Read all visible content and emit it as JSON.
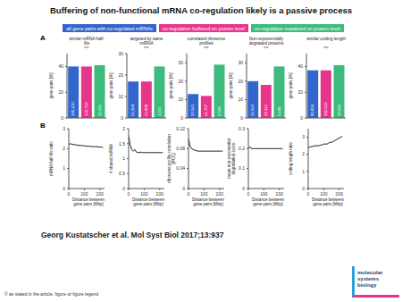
{
  "title": "Buffering of non-functional mRNA co-regulation likely is a passive process",
  "panels": [
    "A",
    "B"
  ],
  "chart_data": [
    {
      "type": "bar",
      "title": "similar mRNA half-life",
      "categories": [
        "all gene pairs with co-regulated mRNAs",
        "co-regulation buffered on protein level",
        "co-regulation sustained on protein level"
      ],
      "colors": [
        "#3366cc",
        "#e8358c",
        "#3dbb7d"
      ],
      "values": [
        40,
        40,
        41
      ],
      "counts": [
        105120,
        146713,
        11416
      ],
      "ylabel": "gene pairs [%]",
      "ylim": [
        0,
        50
      ],
      "yticks": [
        0,
        20,
        40
      ],
      "annotation": "***",
      "tick_labels": "y",
      "legend": "top"
    },
    {
      "type": "bar",
      "title": "targeted by same miRNA",
      "categories": [
        "all gene pairs with co-regulated mRNAs",
        "co-regulation buffered on protein level",
        "co-regulation sustained on protein level"
      ],
      "colors": [
        "#3366cc",
        "#e8358c",
        "#3dbb7d"
      ],
      "values": [
        17,
        17,
        24
      ],
      "counts": [
        62369,
        44908,
        1374
      ],
      "ylabel": "gene pairs [%]",
      "ylim": [
        0,
        30
      ],
      "yticks": [
        0,
        10,
        20,
        30
      ],
      "annotation": "***",
      "tick_labels": "y"
    },
    {
      "type": "bar",
      "title": "correlated ribosome profiles",
      "categories": [
        "all gene pairs with co-regulated mRNAs",
        "co-regulation buffered on protein level",
        "co-regulation sustained on protein level"
      ],
      "colors": [
        "#3366cc",
        "#e8358c",
        "#3dbb7d"
      ],
      "values": [
        13,
        12,
        29
      ],
      "counts": [
        55545,
        41707,
        6508
      ],
      "ylabel": "gene pairs [%]",
      "ylim": [
        0,
        35
      ],
      "yticks": [
        0,
        10,
        20,
        30
      ],
      "annotation": "***",
      "tick_labels": "y"
    },
    {
      "type": "bar",
      "title": "Non-exponentially degraded proteins",
      "categories": [
        "all gene pairs with co-regulated mRNAs",
        "co-regulation buffered on protein level",
        "co-regulation sustained on protein level"
      ],
      "colors": [
        "#3366cc",
        "#e8358c",
        "#3dbb7d"
      ],
      "values": [
        20,
        18,
        28
      ],
      "counts": [
        32640,
        28142,
        3198
      ],
      "ylabel": "gene pairs [%]",
      "ylim": [
        0,
        35
      ],
      "yticks": [
        0,
        10,
        20,
        30
      ],
      "annotation": "***",
      "tick_labels": "y"
    },
    {
      "type": "bar",
      "title": "similar coding length",
      "categories": [
        "all gene pairs with co-regulated mRNAs",
        "co-regulation buffered on protein level",
        "co-regulation sustained on protein level"
      ],
      "colors": [
        "#3366cc",
        "#e8358c",
        "#3dbb7d"
      ],
      "values": [
        37,
        37,
        41
      ],
      "counts": [
        95858,
        102526,
        10036
      ],
      "ylabel": "gene pairs [%]",
      "ylim": [
        0,
        50
      ],
      "yticks": [
        0,
        20,
        40
      ],
      "annotation": "***",
      "tick_labels": "y"
    },
    {
      "type": "line",
      "x": [
        0,
        10,
        20,
        30,
        40,
        50,
        60,
        70,
        80,
        90,
        100,
        110,
        120,
        130,
        140,
        150,
        160,
        170,
        180,
        190,
        200,
        210,
        220
      ],
      "values": [
        2.2,
        2.25,
        2.22,
        2.2,
        2.2,
        2.18,
        2.17,
        2.16,
        2.15,
        2.15,
        2.14,
        2.13,
        2.12,
        2.12,
        2.11,
        2.1,
        2.1,
        2.1,
        2.1,
        2.08,
        2.08,
        2.08,
        2.05
      ],
      "color": "#000000",
      "xlabel": "Distance between gene pairs [Mbp]",
      "ylabel": "mRNA half-life ratio",
      "xlim": [
        0,
        230
      ],
      "xticks": [
        0,
        100,
        200
      ],
      "ylim": [
        0,
        3
      ],
      "yticks": [
        0,
        1,
        2,
        3
      ]
    },
    {
      "type": "line",
      "x": [
        0,
        10,
        20,
        30,
        40,
        50,
        60,
        70,
        80,
        90,
        100,
        110,
        120,
        130,
        140,
        150,
        160,
        170,
        180,
        190,
        200,
        210,
        220
      ],
      "values": [
        1.75,
        1.45,
        1.3,
        1.25,
        1.3,
        1.22,
        1.2,
        1.2,
        1.22,
        1.2,
        1.2,
        1.2,
        1.2,
        1.2,
        1.2,
        1.2,
        1.2,
        1.2,
        1.2,
        1.2,
        1.2,
        1.2,
        1.2
      ],
      "color": "#000000",
      "xlabel": "Distance between gene pairs [Mbp]",
      "ylabel": "# shared miRNA",
      "xlim": [
        0,
        230
      ],
      "xticks": [
        0,
        100,
        200
      ],
      "ylim": [
        0,
        2
      ],
      "yticks": [
        0,
        0.5,
        1,
        1.5,
        2
      ]
    },
    {
      "type": "line",
      "x": [
        0,
        10,
        20,
        30,
        40,
        50,
        60,
        70,
        80,
        90,
        100,
        110,
        120,
        130,
        140,
        150,
        160,
        170,
        180,
        190,
        200,
        210,
        220
      ],
      "values": [
        0.1,
        0.085,
        0.08,
        0.078,
        0.077,
        0.076,
        0.075,
        0.075,
        0.075,
        0.075,
        0.075,
        0.075,
        0.075,
        0.075,
        0.075,
        0.075,
        0.075,
        0.075,
        0.075,
        0.075,
        0.075,
        0.075,
        0.075
      ],
      "color": "#000000",
      "xlabel": "Distance between gene pairs [Mbp]",
      "ylabel": "ribosome profile correlation [PCC]",
      "xlim": [
        0,
        230
      ],
      "xticks": [
        0,
        100,
        200
      ],
      "ylim": [
        0,
        0.12
      ],
      "yticks": [
        0,
        0.04,
        0.08,
        0.12
      ]
    },
    {
      "type": "line",
      "x": [
        0,
        10,
        20,
        30,
        40,
        50,
        60,
        70,
        80,
        90,
        100,
        110,
        120,
        130,
        140,
        150,
        160,
        170,
        180,
        190,
        200,
        210,
        220
      ],
      "values": [
        0.2,
        0.21,
        0.2,
        0.2,
        0.2,
        0.2,
        0.2,
        0.2,
        0.2,
        0.2,
        0.2,
        0.2,
        0.2,
        0.2,
        0.2,
        0.2,
        0.2,
        0.2,
        0.2,
        0.2,
        0.2,
        0.2,
        0.2
      ],
      "color": "#000000",
      "xlabel": "Distance between gene pairs [Mbp]",
      "ylabel": "mean non-exponential degradation score",
      "xlim": [
        0,
        230
      ],
      "xticks": [
        0,
        100,
        200
      ],
      "ylim": [
        0,
        0.3
      ],
      "yticks": [
        0,
        0.1,
        0.2,
        0.3
      ]
    },
    {
      "type": "line",
      "x": [
        0,
        10,
        20,
        30,
        40,
        50,
        60,
        70,
        80,
        90,
        100,
        110,
        120,
        130,
        140,
        150,
        160,
        170,
        180,
        190,
        200,
        210,
        220
      ],
      "values": [
        2.4,
        2.42,
        2.45,
        2.45,
        2.5,
        2.5,
        2.5,
        2.5,
        2.55,
        2.55,
        2.6,
        2.6,
        2.6,
        2.65,
        2.7,
        2.7,
        2.75,
        2.8,
        2.85,
        2.9,
        2.95,
        3.0,
        3.05
      ],
      "color": "#000000",
      "xlabel": "Distance between gene pairs [Mbp]",
      "ylabel": "coding length ratio",
      "xlim": [
        0,
        230
      ],
      "xticks": [
        0,
        100,
        200
      ],
      "ylim": [
        0,
        3.5
      ],
      "yticks": [
        0,
        1,
        2,
        3
      ]
    }
  ],
  "citation": "Georg Kustatscher et al. Mol Syst Biol 2017;13:937",
  "footer": "© as stated in the article, figure or figure legend",
  "journal": "molecular systems biology"
}
